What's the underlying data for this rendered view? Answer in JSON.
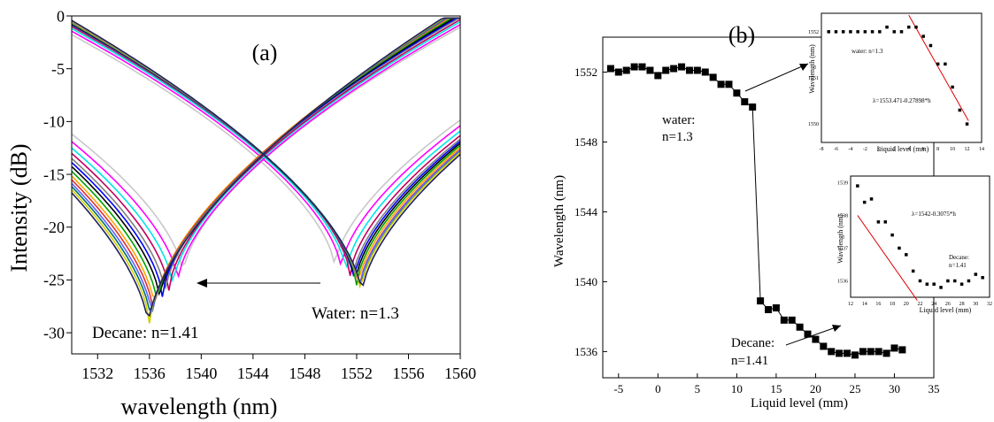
{
  "chart_data": [
    {
      "panel_label": "(a)",
      "type": "line",
      "xlabel": "wavelength (nm)",
      "ylabel": "Intensity (dB)",
      "xlim": [
        1530,
        1560
      ],
      "ylim": [
        -32,
        0
      ],
      "xticks": [
        1532,
        1536,
        1540,
        1544,
        1548,
        1552,
        1556,
        1560
      ],
      "yticks": [
        0,
        -5,
        -10,
        -15,
        -20,
        -25,
        -30
      ],
      "annotations": [
        "Decane: n=1.41",
        "Water: n=1.3"
      ],
      "series_colors": [
        "#c8c8c8",
        "#ff00ff",
        "#00e5e5",
        "#c00060",
        "#808080",
        "#0000ff",
        "#000000",
        "#00a000",
        "#ffa500",
        "#e03030",
        "#6060ff",
        "#007070",
        "#d0d000",
        "#202060"
      ],
      "dip_left_centers": [
        1538.6,
        1538.2,
        1537.8,
        1537.5,
        1537.2,
        1537.0,
        1536.8,
        1536.6,
        1536.4,
        1536.3,
        1536.2,
        1536.1,
        1536.0,
        1535.9
      ],
      "dip_left_depths": [
        -24.5,
        -25.2,
        -25.6,
        -26.0,
        -26.3,
        -26.6,
        -26.9,
        -27.3,
        -27.7,
        -28.1,
        -28.5,
        -28.8,
        -29.1,
        -29.4
      ],
      "dip_right_centers": [
        1550.3,
        1550.8,
        1551.2,
        1551.5,
        1551.7,
        1551.8,
        1551.9,
        1552.0,
        1552.1,
        1552.2,
        1552.2,
        1552.3,
        1552.3,
        1552.4
      ],
      "dip_right_depths": [
        -23.8,
        -24.0,
        -24.3,
        -24.6,
        -24.9,
        -25.1,
        -25.3,
        -25.5,
        -25.7,
        -25.9,
        -26.0,
        -26.1,
        -26.2,
        -26.4
      ]
    },
    {
      "panel_label": "(b)",
      "type": "scatter",
      "xlabel": "Liquid level (mm)",
      "ylabel": "Wavelength (nm)",
      "xlim": [
        -7,
        35
      ],
      "ylim": [
        1534.5,
        1554
      ],
      "xticks": [
        -5,
        0,
        5,
        10,
        15,
        20,
        25,
        30,
        35
      ],
      "yticks": [
        1536,
        1540,
        1544,
        1548,
        1552
      ],
      "annotations": [
        "water:",
        "n=1.3",
        "Decane:",
        "n=1.41"
      ],
      "x": [
        -6,
        -5,
        -4,
        -3,
        -2,
        -1,
        0,
        1,
        2,
        3,
        4,
        5,
        6,
        7,
        8,
        9,
        10,
        11,
        12,
        13,
        14,
        15,
        16,
        17,
        18,
        19,
        20,
        21,
        22,
        23,
        24,
        25,
        26,
        27,
        28,
        29,
        30,
        31
      ],
      "y": [
        1552.2,
        1552.0,
        1552.1,
        1552.3,
        1552.3,
        1552.1,
        1551.8,
        1552.1,
        1552.2,
        1552.3,
        1552.1,
        1552.1,
        1552.0,
        1551.7,
        1551.3,
        1551.3,
        1550.8,
        1550.3,
        1550.0,
        1538.9,
        1538.4,
        1538.5,
        1537.8,
        1537.8,
        1537.4,
        1537.0,
        1536.7,
        1536.3,
        1536.0,
        1535.9,
        1535.9,
        1535.8,
        1536.0,
        1536.0,
        1536.0,
        1535.9,
        1536.2,
        1536.1
      ]
    },
    {
      "panel_label": "inset-water",
      "type": "scatter",
      "xlabel": "Liquid level (mm)",
      "ylabel": "Wavelength (nm)",
      "xlim": [
        -8,
        14
      ],
      "ylim": [
        1549.6,
        1552.4
      ],
      "xticks": [
        -8,
        -6,
        -4,
        -2,
        0,
        2,
        4,
        6,
        8,
        10,
        12,
        14
      ],
      "yticks": [
        1550,
        1551,
        1552
      ],
      "legend_text": "water: n=1.3",
      "fit_text": "λ=1553.471-0.27898*h",
      "x": [
        -7,
        -6,
        -5,
        -4,
        -3,
        -2,
        -1,
        0,
        1,
        2,
        3,
        4,
        5,
        6,
        7,
        8,
        9,
        10,
        11,
        12
      ],
      "y": [
        1552.0,
        1552.0,
        1552.0,
        1552.0,
        1552.0,
        1552.0,
        1552.0,
        1552.0,
        1552.1,
        1552.0,
        1552.0,
        1552.1,
        1552.1,
        1551.9,
        1551.7,
        1551.3,
        1551.3,
        1550.8,
        1550.3,
        1550.0
      ],
      "fit_line": {
        "x": [
          4,
          12.2
        ],
        "y": [
          1552.36,
          1550.07
        ]
      }
    },
    {
      "panel_label": "inset-decane",
      "type": "scatter",
      "xlabel": "Liquid level (mm)",
      "ylabel": "Wavelength (nm)",
      "xlim": [
        12,
        32
      ],
      "ylim": [
        1535.5,
        1539.2
      ],
      "xticks": [
        12,
        14,
        16,
        18,
        20,
        22,
        24,
        26,
        28,
        30,
        32
      ],
      "yticks": [
        1536,
        1537,
        1538,
        1539
      ],
      "legend_text": [
        "Decane:",
        "n=1.41"
      ],
      "fit_text": "λ=1542-0.3075*h",
      "x": [
        13,
        14,
        15,
        16,
        17,
        18,
        19,
        20,
        21,
        22,
        23,
        24,
        25,
        26,
        27,
        28,
        29,
        30,
        31
      ],
      "y": [
        1538.9,
        1538.4,
        1538.5,
        1537.8,
        1537.8,
        1537.4,
        1537.0,
        1536.8,
        1536.3,
        1536.0,
        1535.9,
        1535.9,
        1535.8,
        1536.0,
        1536.0,
        1535.9,
        1536.0,
        1536.2,
        1536.1
      ],
      "fit_line": {
        "x": [
          13,
          21.6
        ],
        "y": [
          1538.0,
          1535.4
        ]
      }
    }
  ]
}
